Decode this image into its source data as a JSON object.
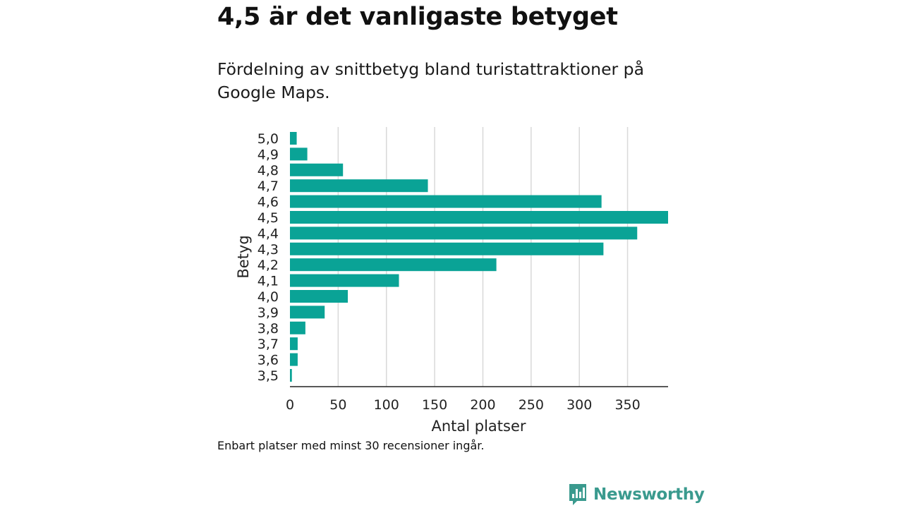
{
  "title": "4,5 är det vanligaste betyget",
  "subtitle": "Fördelning av snittbetyg bland turistattraktioner på Google Maps.",
  "footnote": "Enbart platser med minst 30 recensioner ingår.",
  "brand": {
    "name": "Newsworthy",
    "icon": "newsworthy-logo-icon",
    "color": "#3a9a8e"
  },
  "chart_data": {
    "type": "bar",
    "orientation": "horizontal",
    "xlabel": "Antal platser",
    "ylabel": "Betyg",
    "xlim": [
      0,
      392
    ],
    "xticks": [
      0,
      50,
      100,
      150,
      200,
      250,
      300,
      350
    ],
    "xtick_labels": [
      "0",
      "50",
      "100",
      "150",
      "200",
      "250",
      "300",
      "350"
    ],
    "grid": "vertical",
    "bar_color": "#0aa396",
    "categories": [
      "5,0",
      "4,9",
      "4,8",
      "4,7",
      "4,6",
      "4,5",
      "4,4",
      "4,3",
      "4,2",
      "4,1",
      "4,0",
      "3,9",
      "3,8",
      "3,7",
      "3,6",
      "3,5"
    ],
    "values": [
      7,
      18,
      55,
      143,
      323,
      393,
      360,
      325,
      214,
      113,
      60,
      36,
      16,
      8,
      8,
      2
    ]
  }
}
